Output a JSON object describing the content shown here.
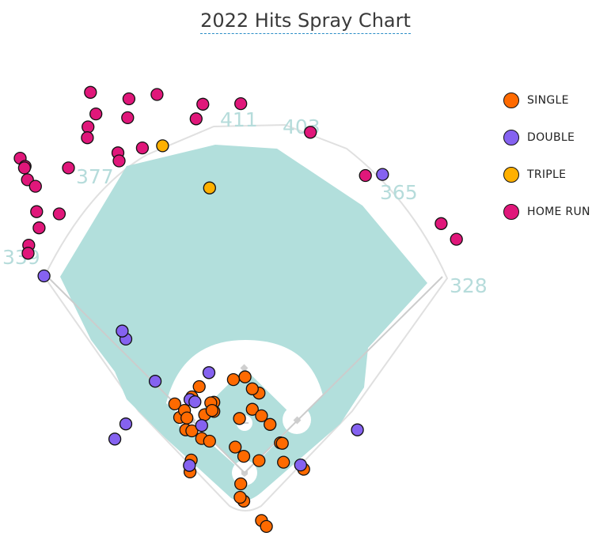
{
  "title": "2022 Hits Spray Chart",
  "colors": {
    "single": "#ff6a00",
    "double": "#8562f0",
    "triple": "#ffb000",
    "home_run": "#e0177a",
    "field": "#b2dfdc"
  },
  "legend": [
    {
      "key": "single",
      "label": "SINGLE"
    },
    {
      "key": "double",
      "label": "DOUBLE"
    },
    {
      "key": "triple",
      "label": "TRIPLE"
    },
    {
      "key": "home_run",
      "label": "HOME RUN"
    }
  ],
  "fence_distances": [
    "339",
    "377",
    "411",
    "403",
    "365",
    "328"
  ],
  "chart_data": {
    "type": "scatter",
    "title": "2022 Hits Spray Chart",
    "xlabel": "",
    "ylabel": "",
    "legend_position": "right",
    "note": "x/y read as normalized field-diagram coordinates (0 = left edge, 1 = right edge; 0 = top, 1 = bottom of diagram)",
    "series": [
      {
        "name": "SINGLE",
        "points": [
          [
            0.385,
            0.828
          ],
          [
            0.392,
            0.775
          ],
          [
            0.35,
            0.745
          ],
          [
            0.314,
            0.735
          ],
          [
            0.294,
            0.773
          ],
          [
            0.286,
            0.748
          ],
          [
            0.302,
            0.76
          ],
          [
            0.306,
            0.774
          ],
          [
            0.304,
            0.796
          ],
          [
            0.314,
            0.798
          ],
          [
            0.335,
            0.768
          ],
          [
            0.35,
            0.762
          ],
          [
            0.413,
            0.758
          ],
          [
            0.442,
            0.786
          ],
          [
            0.459,
            0.82
          ],
          [
            0.464,
            0.856
          ],
          [
            0.497,
            0.869
          ],
          [
            0.462,
            0.821
          ],
          [
            0.428,
            0.77
          ],
          [
            0.399,
            0.845
          ],
          [
            0.394,
            0.896
          ],
          [
            0.399,
            0.928
          ],
          [
            0.428,
            0.964
          ],
          [
            0.436,
            0.975
          ],
          [
            0.393,
            0.921
          ],
          [
            0.424,
            0.853
          ],
          [
            0.424,
            0.728
          ],
          [
            0.413,
            0.72
          ],
          [
            0.345,
            0.746
          ],
          [
            0.401,
            0.698
          ],
          [
            0.382,
            0.703
          ],
          [
            0.326,
            0.716
          ],
          [
            0.347,
            0.76
          ],
          [
            0.33,
            0.812
          ],
          [
            0.343,
            0.817
          ],
          [
            0.313,
            0.852
          ],
          [
            0.311,
            0.874
          ]
        ]
      },
      {
        "name": "DOUBLE",
        "points": [
          [
            0.188,
            0.813
          ],
          [
            0.342,
            0.69
          ],
          [
            0.311,
            0.74
          ],
          [
            0.33,
            0.788
          ],
          [
            0.319,
            0.744
          ],
          [
            0.31,
            0.862
          ],
          [
            0.206,
            0.785
          ],
          [
            0.492,
            0.861
          ],
          [
            0.254,
            0.706
          ],
          [
            0.206,
            0.628
          ],
          [
            0.2,
            0.613
          ],
          [
            0.072,
            0.511
          ],
          [
            0.585,
            0.796
          ],
          [
            0.626,
            0.323
          ]
        ]
      },
      {
        "name": "TRIPLE",
        "points": [
          [
            0.266,
            0.27
          ],
          [
            0.343,
            0.348
          ]
        ]
      },
      {
        "name": "HOME RUN",
        "points": [
          [
            0.148,
            0.171
          ],
          [
            0.211,
            0.183
          ],
          [
            0.257,
            0.175
          ],
          [
            0.157,
            0.211
          ],
          [
            0.209,
            0.218
          ],
          [
            0.144,
            0.235
          ],
          [
            0.143,
            0.255
          ],
          [
            0.233,
            0.274
          ],
          [
            0.193,
            0.283
          ],
          [
            0.195,
            0.298
          ],
          [
            0.112,
            0.311
          ],
          [
            0.033,
            0.293
          ],
          [
            0.041,
            0.308
          ],
          [
            0.04,
            0.311
          ],
          [
            0.045,
            0.333
          ],
          [
            0.058,
            0.345
          ],
          [
            0.06,
            0.392
          ],
          [
            0.097,
            0.396
          ],
          [
            0.064,
            0.422
          ],
          [
            0.047,
            0.454
          ],
          [
            0.046,
            0.469
          ],
          [
            0.332,
            0.193
          ],
          [
            0.321,
            0.22
          ],
          [
            0.394,
            0.192
          ],
          [
            0.508,
            0.245
          ],
          [
            0.598,
            0.325
          ],
          [
            0.722,
            0.414
          ],
          [
            0.747,
            0.443
          ]
        ]
      }
    ]
  }
}
